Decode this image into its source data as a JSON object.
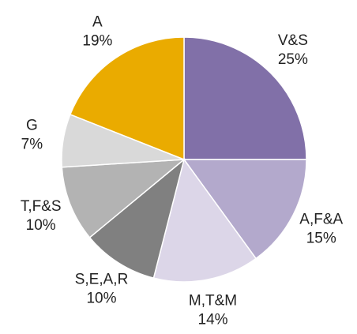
{
  "chart_data": {
    "type": "pie",
    "categories": [
      "V&S",
      "A,F&A",
      "M,T&M",
      "S,E,A,R",
      "T,F&S",
      "G",
      "A"
    ],
    "values": [
      25,
      15,
      14,
      10,
      10,
      7,
      19
    ],
    "value_labels": [
      "25%",
      "15%",
      "14%",
      "10%",
      "10%",
      "7%",
      "19%"
    ],
    "colors": [
      "#8170a8",
      "#b3a9cc",
      "#dcd6e8",
      "#808080",
      "#b3b3b3",
      "#d9d9d9",
      "#eaab00"
    ]
  }
}
